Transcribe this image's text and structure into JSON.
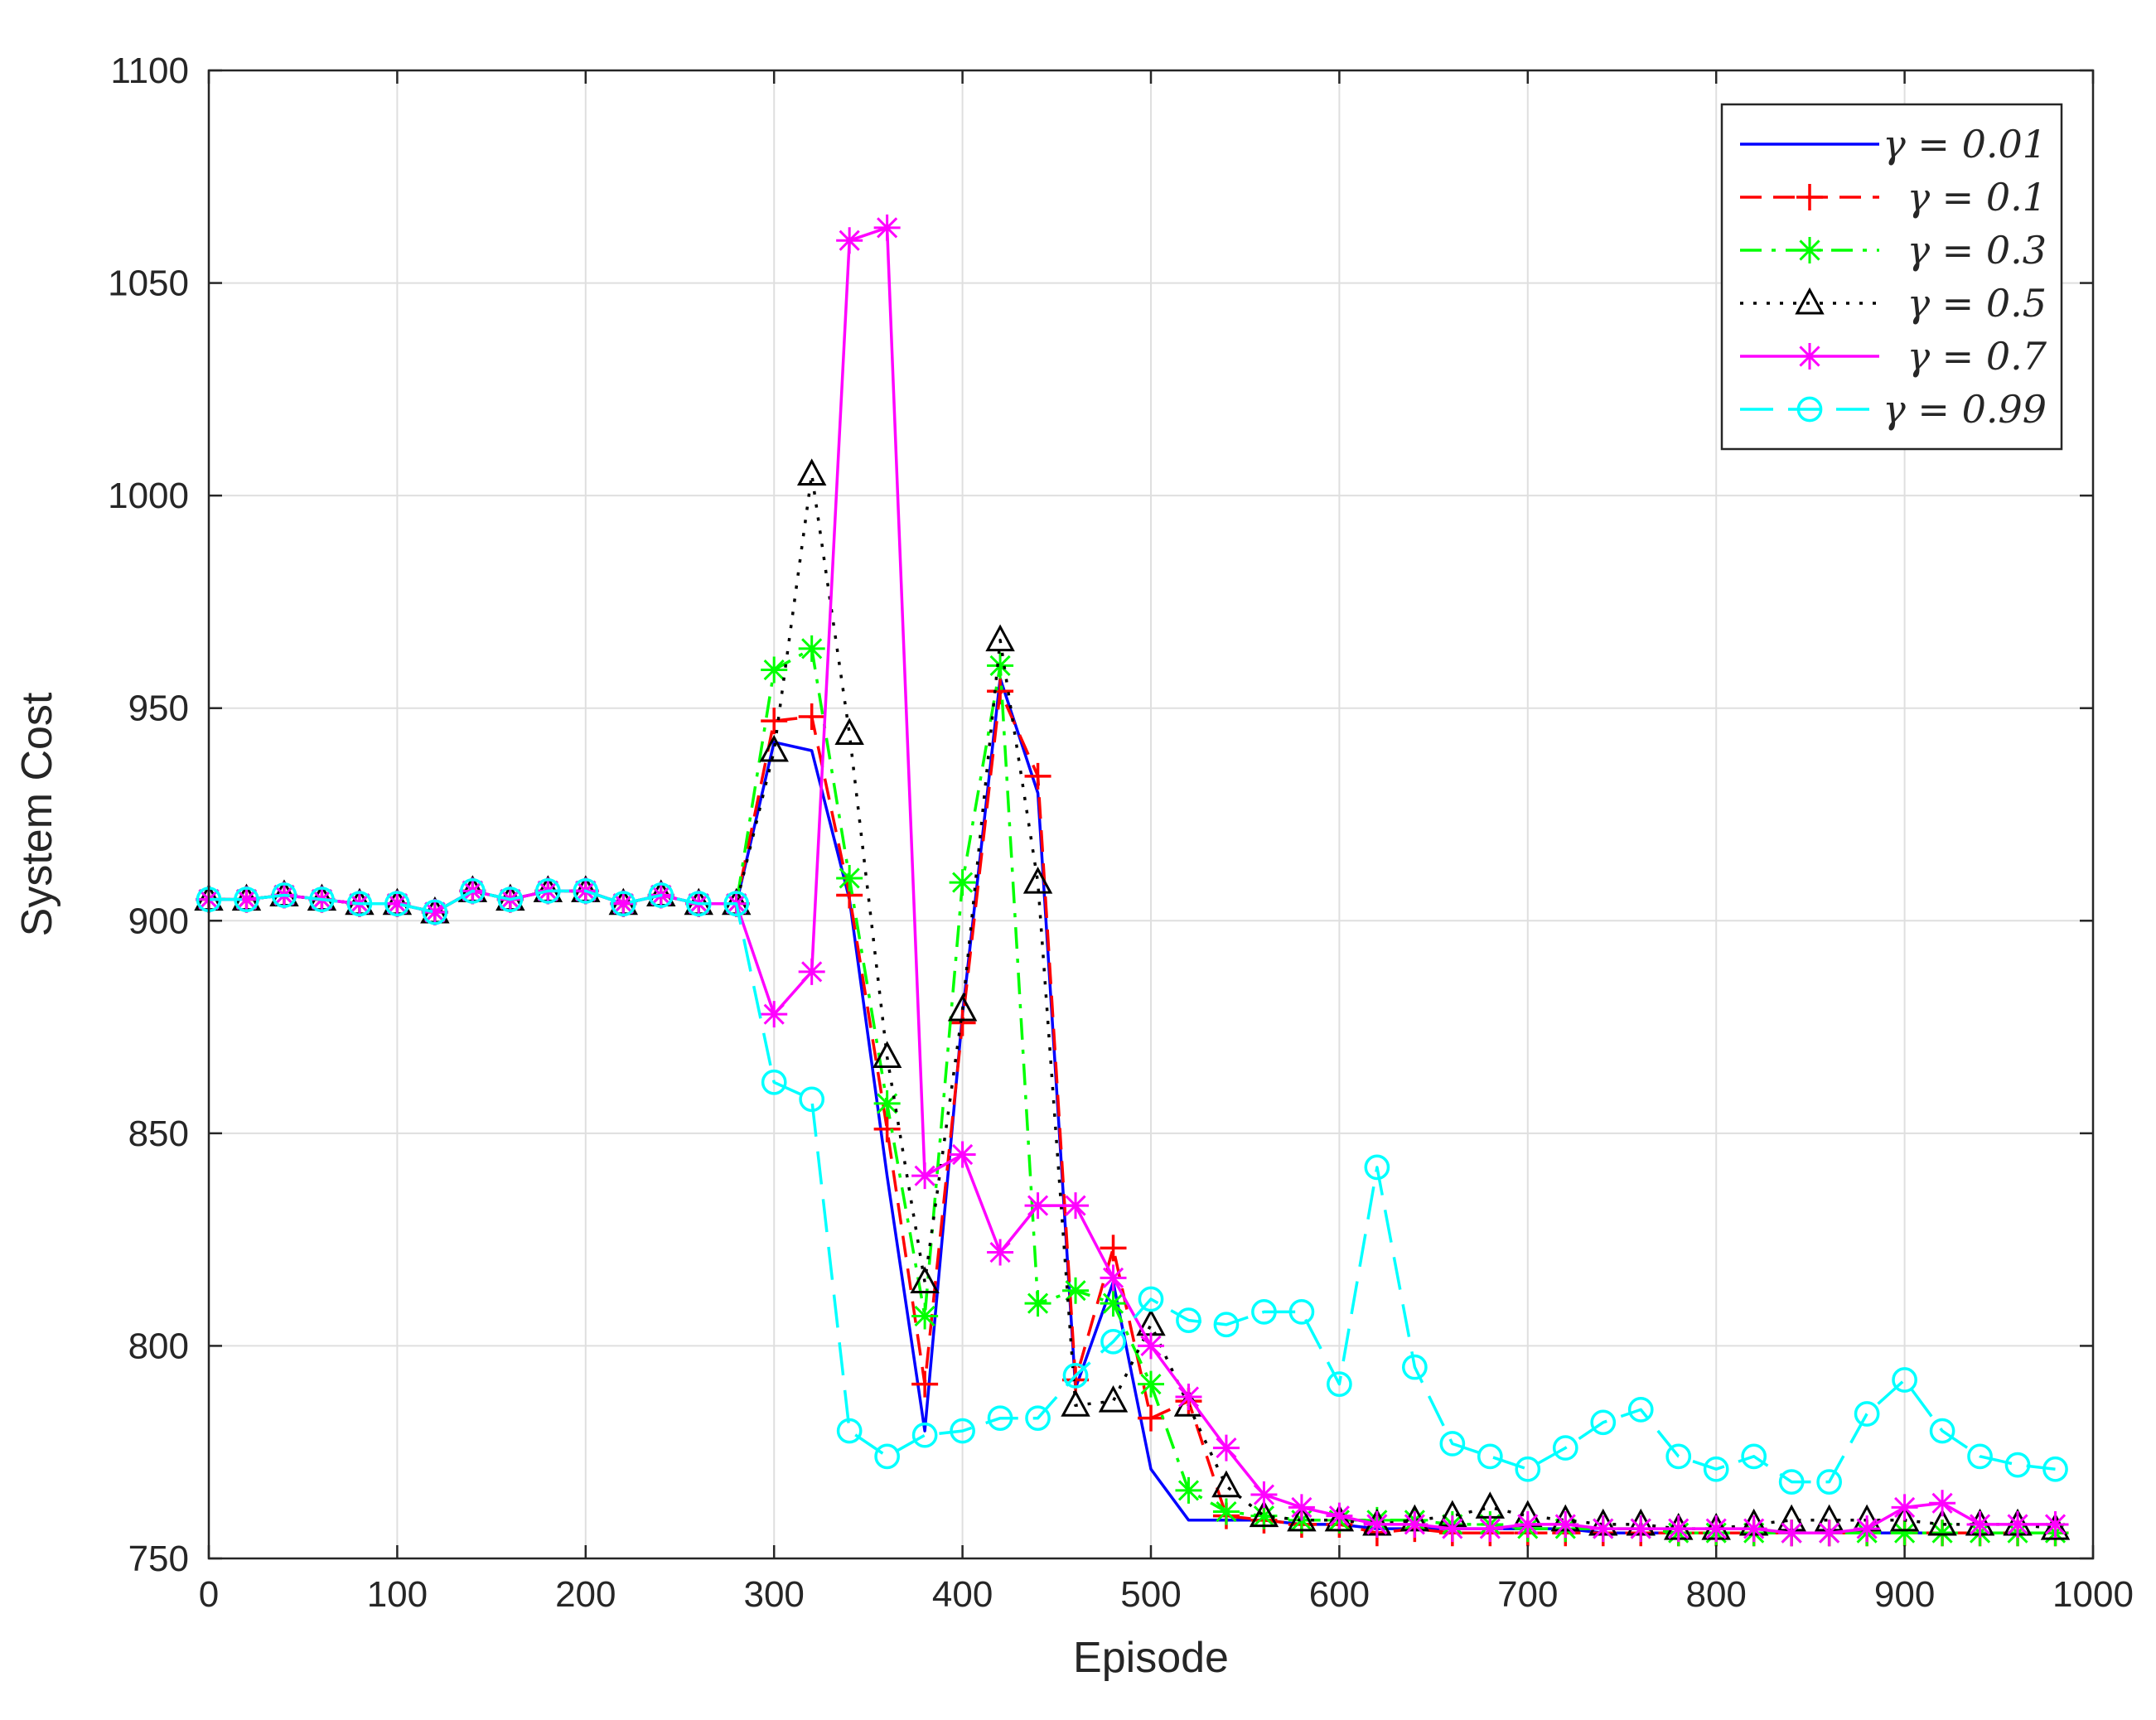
{
  "chart_data": {
    "type": "line",
    "title": "",
    "xlabel": "Episode",
    "ylabel": "System Cost",
    "xlim": [
      0,
      1000
    ],
    "ylim": [
      750,
      1100
    ],
    "xticks": [
      0,
      100,
      200,
      300,
      400,
      500,
      600,
      700,
      800,
      900,
      1000
    ],
    "yticks": [
      750,
      800,
      850,
      900,
      950,
      1000,
      1050,
      1100
    ],
    "xtick_labels": [
      "0",
      "100",
      "200",
      "300",
      "400",
      "500",
      "600",
      "700",
      "800",
      "900",
      "1000"
    ],
    "ytick_labels": [
      "750",
      "800",
      "850",
      "900",
      "950",
      "1000",
      "1050",
      "1100"
    ],
    "grid": true,
    "legend_position": "top-right",
    "x": [
      0,
      20,
      40,
      60,
      80,
      100,
      120,
      140,
      160,
      180,
      200,
      220,
      240,
      260,
      280,
      300,
      320,
      340,
      360,
      380,
      400,
      420,
      440,
      460,
      480,
      500,
      520,
      540,
      560,
      580,
      600,
      620,
      640,
      660,
      680,
      700,
      720,
      740,
      760,
      780,
      800,
      820,
      840,
      860,
      880,
      900,
      920,
      940,
      960,
      980
    ],
    "series": [
      {
        "name": "γ = 0.01",
        "color": "#0000ff",
        "dash": "solid",
        "marker": "none",
        "values": [
          905,
          905,
          906,
          905,
          904,
          904,
          902,
          907,
          905,
          907,
          907,
          904,
          906,
          904,
          904,
          942,
          940,
          905,
          840,
          780,
          878,
          957,
          930,
          790,
          815,
          771,
          759,
          759,
          759,
          758,
          758,
          757,
          757,
          757,
          757,
          757,
          757,
          756,
          756,
          756,
          756,
          756,
          756,
          756,
          756,
          756,
          756,
          756,
          756,
          756
        ]
      },
      {
        "name": "γ = 0.1",
        "color": "#ff0000",
        "dash": "dashed",
        "marker": "plus",
        "values": [
          905,
          905,
          906,
          905,
          904,
          904,
          902,
          907,
          905,
          907,
          907,
          904,
          906,
          904,
          904,
          947,
          948,
          906,
          851,
          791,
          876,
          954,
          934,
          792,
          823,
          783,
          787,
          760,
          759,
          758,
          758,
          756,
          757,
          756,
          756,
          756,
          756,
          756,
          756,
          756,
          756,
          756,
          756,
          756,
          756,
          756,
          756,
          756,
          756,
          756
        ]
      },
      {
        "name": "γ = 0.3",
        "color": "#00ff00",
        "dash": "dashdot",
        "marker": "asterisk",
        "values": [
          905,
          905,
          906,
          905,
          904,
          904,
          902,
          907,
          905,
          907,
          907,
          904,
          906,
          904,
          904,
          959,
          964,
          910,
          857,
          807,
          909,
          960,
          810,
          813,
          810,
          791,
          766,
          761,
          760,
          759,
          759,
          759,
          759,
          758,
          758,
          757,
          757,
          757,
          757,
          756,
          756,
          756,
          756,
          756,
          756,
          756,
          756,
          756,
          756,
          756
        ]
      },
      {
        "name": "γ = 0.5",
        "color": "#000000",
        "dash": "dotted",
        "marker": "triangle",
        "values": [
          905,
          905,
          906,
          905,
          904,
          904,
          902,
          907,
          905,
          907,
          907,
          904,
          906,
          904,
          904,
          940,
          1005,
          944,
          868,
          815,
          879,
          966,
          909,
          786,
          787,
          805,
          786,
          767,
          760,
          759,
          759,
          758,
          759,
          760,
          762,
          760,
          759,
          758,
          758,
          757,
          757,
          758,
          759,
          759,
          759,
          759,
          758,
          758,
          758,
          757
        ]
      },
      {
        "name": "γ = 0.7",
        "color": "#ff00ff",
        "dash": "solid",
        "marker": "asterisk",
        "values": [
          905,
          905,
          906,
          905,
          904,
          904,
          902,
          907,
          905,
          907,
          907,
          904,
          906,
          904,
          904,
          878,
          888,
          1060,
          1063,
          840,
          845,
          822,
          833,
          833,
          816,
          800,
          788,
          776,
          765,
          762,
          760,
          758,
          758,
          757,
          757,
          758,
          758,
          757,
          757,
          757,
          757,
          757,
          756,
          756,
          757,
          762,
          763,
          758,
          758,
          758
        ]
      },
      {
        "name": "γ = 0.99",
        "color": "#00ffff",
        "dash": "longdash",
        "marker": "circle",
        "values": [
          905,
          905,
          906,
          905,
          904,
          904,
          902,
          907,
          905,
          907,
          907,
          904,
          906,
          904,
          904,
          862,
          858,
          780,
          774,
          779,
          780,
          783,
          783,
          793,
          801,
          811,
          806,
          805,
          808,
          808,
          791,
          842,
          795,
          777,
          774,
          771,
          776,
          782,
          785,
          774,
          771,
          774,
          768,
          768,
          784,
          792,
          780,
          774,
          772,
          771
        ]
      }
    ]
  }
}
